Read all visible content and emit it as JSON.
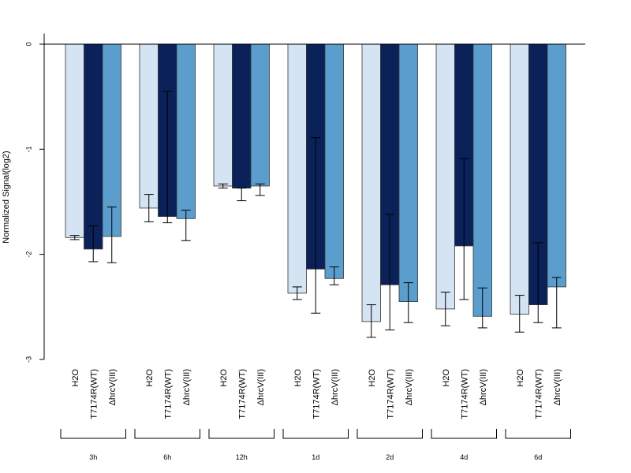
{
  "chart_data": {
    "type": "bar",
    "ylabel": "Normalized Signal(log2)",
    "xlabel": "",
    "ylim": [
      -3,
      0.1
    ],
    "yticks": [
      0,
      -1,
      -2,
      -3
    ],
    "yticklabels": [
      "0",
      "-1",
      "-2",
      "-3"
    ],
    "groups": [
      "3h",
      "6h",
      "12h",
      "1d",
      "2d",
      "4d",
      "6d"
    ],
    "bar_labels": [
      "H2O",
      "T7174R(WT)",
      "ΔhrcV(III)"
    ],
    "series": [
      {
        "name": "H2O",
        "color": "#d4e4f3",
        "values": [
          -1.84,
          -1.56,
          -1.35,
          -2.37,
          -2.64,
          -2.52,
          -2.57
        ],
        "err_low": [
          -1.86,
          -1.69,
          -1.37,
          -2.43,
          -2.79,
          -2.68,
          -2.74
        ],
        "err_high": [
          -1.82,
          -1.43,
          -1.33,
          -2.31,
          -2.48,
          -2.36,
          -2.39
        ]
      },
      {
        "name": "T7174R(WT)",
        "color": "#0a2159",
        "values": [
          -1.95,
          -1.64,
          -1.37,
          -2.14,
          -2.29,
          -1.92,
          -2.48
        ],
        "err_low": [
          -2.07,
          -1.7,
          -1.49,
          -2.56,
          -2.72,
          -2.43,
          -2.65
        ],
        "err_high": [
          -1.73,
          -0.45,
          -1.37,
          -0.89,
          -1.62,
          -1.09,
          -1.89
        ]
      },
      {
        "name": "ΔhrcV(III)",
        "color": "#5b9ecd",
        "values": [
          -1.83,
          -1.66,
          -1.35,
          -2.23,
          -2.45,
          -2.59,
          -2.31
        ],
        "err_low": [
          -2.08,
          -1.87,
          -1.44,
          -2.29,
          -2.65,
          -2.7,
          -2.7
        ],
        "err_high": [
          -1.55,
          -1.58,
          -1.33,
          -2.12,
          -2.27,
          -2.32,
          -2.22
        ]
      }
    ]
  }
}
